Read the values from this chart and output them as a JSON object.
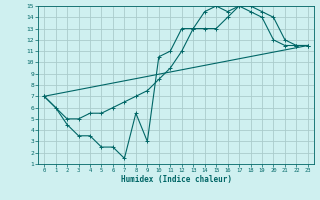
{
  "xlabel": "Humidex (Indice chaleur)",
  "bg_color": "#cff0f0",
  "grid_color": "#aacccc",
  "line_color": "#006666",
  "xlim": [
    -0.5,
    23.5
  ],
  "ylim": [
    1,
    15
  ],
  "xticks": [
    0,
    1,
    2,
    3,
    4,
    5,
    6,
    7,
    8,
    9,
    10,
    11,
    12,
    13,
    14,
    15,
    16,
    17,
    18,
    19,
    20,
    21,
    22,
    23
  ],
  "yticks": [
    1,
    2,
    3,
    4,
    5,
    6,
    7,
    8,
    9,
    10,
    11,
    12,
    13,
    14,
    15
  ],
  "line1_x": [
    0,
    1,
    2,
    3,
    4,
    5,
    6,
    7,
    8,
    9,
    10,
    11,
    12,
    13,
    14,
    15,
    16,
    17,
    18,
    19,
    20,
    21,
    22,
    23
  ],
  "line1_y": [
    7.0,
    6.0,
    4.5,
    3.5,
    3.5,
    2.5,
    2.5,
    1.5,
    5.5,
    3.0,
    10.5,
    11.0,
    13.0,
    13.0,
    14.5,
    15.0,
    14.5,
    15.0,
    14.5,
    14.0,
    12.0,
    11.5,
    11.5,
    11.5
  ],
  "line2_x": [
    0,
    2,
    3,
    4,
    5,
    6,
    7,
    8,
    9,
    10,
    11,
    12,
    13,
    14,
    15,
    16,
    17,
    18,
    19,
    20,
    21,
    22,
    23
  ],
  "line2_y": [
    7.0,
    5.0,
    5.0,
    5.5,
    5.5,
    6.0,
    6.5,
    7.0,
    7.5,
    8.5,
    9.5,
    11.0,
    13.0,
    13.0,
    13.0,
    14.0,
    15.0,
    15.0,
    14.5,
    14.0,
    12.0,
    11.5,
    11.5
  ],
  "line3_x": [
    0,
    23
  ],
  "line3_y": [
    7.0,
    11.5
  ]
}
